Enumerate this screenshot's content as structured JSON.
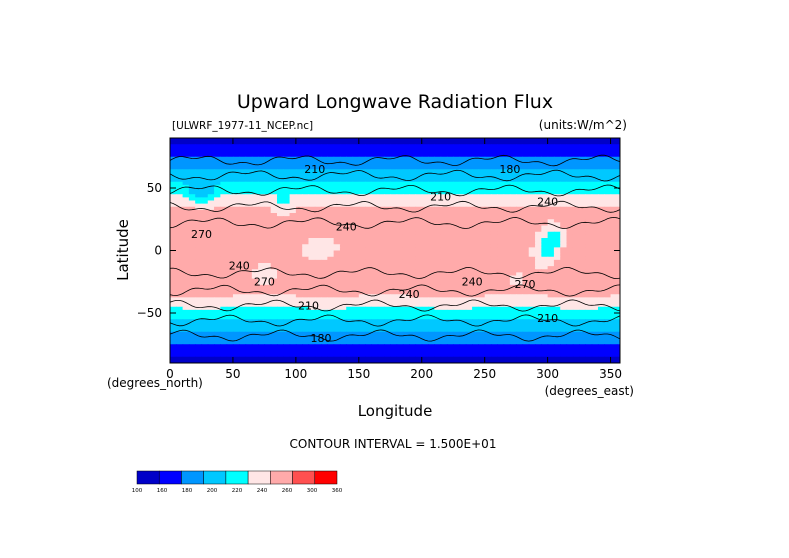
{
  "chart_data": {
    "type": "heatmap",
    "title": "Upward Longwave Radiation Flux",
    "subtitle_left": "[ULWRF_1977-11_NCEP.nc]",
    "subtitle_right": "(units:W/m^2)",
    "xlabel": "Longitude",
    "ylabel": "Latitude",
    "x_unit_label": "(degrees_east)",
    "y_unit_label": "(degrees_north)",
    "xlim": [
      0,
      357.5
    ],
    "ylim": [
      -90,
      90
    ],
    "x_ticks": [
      0,
      50,
      100,
      150,
      200,
      250,
      300,
      350
    ],
    "y_ticks": [
      50,
      0,
      -50
    ],
    "contour_interval_text": "CONTOUR INTERVAL = 1.500E+01",
    "colorbar": {
      "levels": [
        "100",
        "160",
        "180",
        "200",
        "220",
        "240",
        "260",
        "300",
        "360"
      ],
      "colors": [
        "#0000c8",
        "#0000ff",
        "#0096ff",
        "#00c8ff",
        "#00ffff",
        "#ffe6e6",
        "#ffaaaa",
        "#ff5050",
        "#ff0000"
      ]
    },
    "contour_labels": [
      {
        "text": "210",
        "lon": 115,
        "lat": 62
      },
      {
        "text": "180",
        "lon": 270,
        "lat": 62
      },
      {
        "text": "210",
        "lon": 215,
        "lat": 40
      },
      {
        "text": "240",
        "lon": 300,
        "lat": 36
      },
      {
        "text": "240",
        "lon": 140,
        "lat": 16
      },
      {
        "text": "270",
        "lon": 25,
        "lat": 10
      },
      {
        "text": "240",
        "lon": 55,
        "lat": -15
      },
      {
        "text": "270",
        "lon": 75,
        "lat": -28
      },
      {
        "text": "240",
        "lon": 190,
        "lat": -38
      },
      {
        "text": "240",
        "lon": 240,
        "lat": -28
      },
      {
        "text": "270",
        "lon": 282,
        "lat": -30
      },
      {
        "text": "210",
        "lon": 110,
        "lat": -47
      },
      {
        "text": "210",
        "lon": 300,
        "lat": -57
      },
      {
        "text": "180",
        "lon": 120,
        "lat": -73
      }
    ]
  }
}
